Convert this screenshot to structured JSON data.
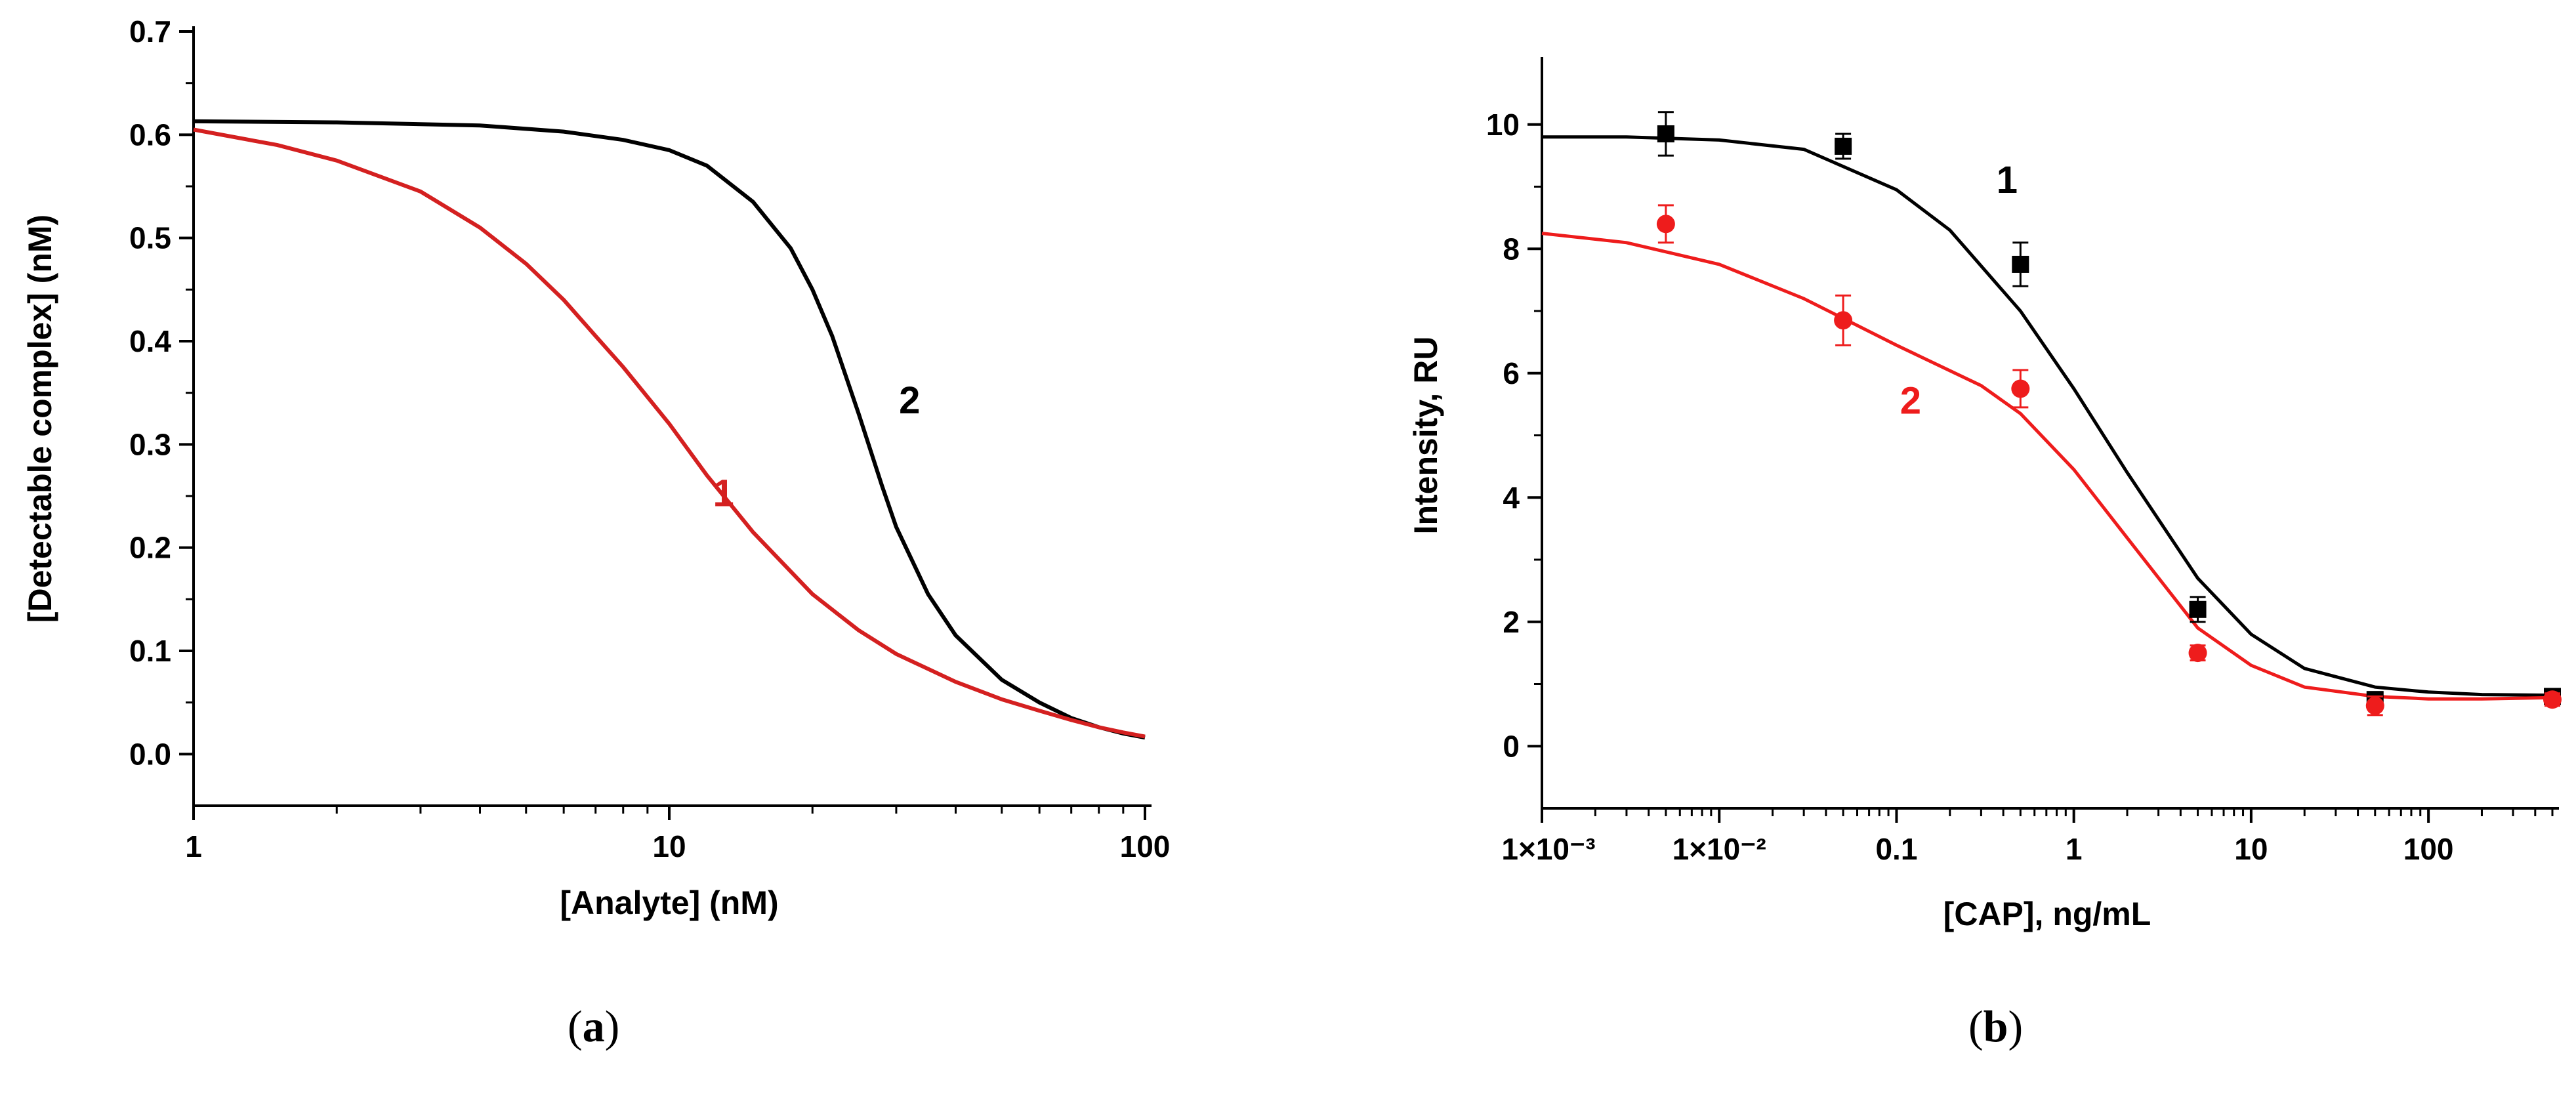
{
  "chart_data": [
    {
      "type": "line",
      "panel_label": "a",
      "xlabel": "[Analyte] (nM)",
      "ylabel": "[Detectable complex] (nM)",
      "xscale": "log",
      "xlim": [
        1,
        100
      ],
      "ylim": [
        -0.05,
        0.7
      ],
      "xticks": [
        1,
        10,
        100
      ],
      "xtick_labels": [
        "1",
        "10",
        "100"
      ],
      "yticks": [
        0.0,
        0.1,
        0.2,
        0.3,
        0.4,
        0.5,
        0.6,
        0.7
      ],
      "ytick_labels": [
        "0.0",
        "0.1",
        "0.2",
        "0.3",
        "0.4",
        "0.5",
        "0.6",
        "0.7"
      ],
      "series": [
        {
          "name": "1",
          "color": "#d42020",
          "x": [
            1,
            1.5,
            2,
            3,
            4,
            5,
            6,
            7,
            8,
            10,
            12,
            15,
            20,
            25,
            30,
            40,
            50,
            60,
            70,
            80,
            90,
            100
          ],
          "y": [
            0.605,
            0.59,
            0.575,
            0.545,
            0.51,
            0.475,
            0.44,
            0.405,
            0.375,
            0.32,
            0.27,
            0.215,
            0.155,
            0.12,
            0.097,
            0.07,
            0.053,
            0.042,
            0.033,
            0.026,
            0.021,
            0.017
          ]
        },
        {
          "name": "2",
          "color": "#000000",
          "x": [
            1,
            2,
            4,
            6,
            8,
            10,
            12,
            15,
            18,
            20,
            22,
            25,
            28,
            30,
            35,
            40,
            50,
            60,
            70,
            80,
            90,
            100
          ],
          "y": [
            0.613,
            0.612,
            0.609,
            0.603,
            0.595,
            0.585,
            0.57,
            0.535,
            0.49,
            0.45,
            0.405,
            0.33,
            0.26,
            0.22,
            0.155,
            0.115,
            0.072,
            0.05,
            0.035,
            0.026,
            0.02,
            0.016
          ]
        }
      ]
    },
    {
      "type": "scatter",
      "panel_label": "b",
      "xlabel": "[CAP], ng/mL",
      "ylabel": "Intensity, RU",
      "xscale": "log",
      "xlim": [
        0.001,
        500
      ],
      "ylim": [
        -1,
        11
      ],
      "xticks": [
        0.001,
        0.01,
        0.1,
        1,
        10,
        100
      ],
      "xtick_labels": [
        "1×10⁻³",
        "1×10⁻²",
        "0.1",
        "1",
        "10",
        "100"
      ],
      "yticks": [
        0,
        2,
        4,
        6,
        8,
        10
      ],
      "ytick_labels": [
        "0",
        "2",
        "4",
        "6",
        "8",
        "10"
      ],
      "series": [
        {
          "name": "1",
          "color": "#000000",
          "marker": "square",
          "points": {
            "x": [
              0.005,
              0.05,
              0.5,
              5,
              50,
              500
            ],
            "y": [
              9.85,
              9.65,
              7.75,
              2.2,
              0.75,
              0.8
            ],
            "err": [
              0.35,
              0.2,
              0.35,
              0.2,
              0.12,
              0.1
            ]
          },
          "fit": {
            "x": [
              0.001,
              0.003,
              0.01,
              0.03,
              0.1,
              0.2,
              0.5,
              1,
              2,
              5,
              10,
              20,
              50,
              100,
              200,
              500
            ],
            "y": [
              9.8,
              9.8,
              9.75,
              9.6,
              8.95,
              8.3,
              7.0,
              5.75,
              4.4,
              2.7,
              1.8,
              1.25,
              0.95,
              0.87,
              0.83,
              0.82
            ]
          }
        },
        {
          "name": "2",
          "color": "#ee1c1c",
          "marker": "circle",
          "points": {
            "x": [
              0.005,
              0.05,
              0.5,
              5,
              50,
              500
            ],
            "y": [
              8.4,
              6.85,
              5.75,
              1.5,
              0.65,
              0.75
            ],
            "err": [
              0.3,
              0.4,
              0.3,
              0.12,
              0.15,
              0.1
            ]
          },
          "fit": {
            "x": [
              0.001,
              0.003,
              0.01,
              0.03,
              0.1,
              0.3,
              0.5,
              1,
              2,
              5,
              10,
              20,
              50,
              100,
              200,
              500
            ],
            "y": [
              8.25,
              8.1,
              7.75,
              7.2,
              6.45,
              5.8,
              5.35,
              4.45,
              3.35,
              1.9,
              1.3,
              0.95,
              0.8,
              0.76,
              0.76,
              0.78
            ]
          }
        }
      ]
    }
  ]
}
